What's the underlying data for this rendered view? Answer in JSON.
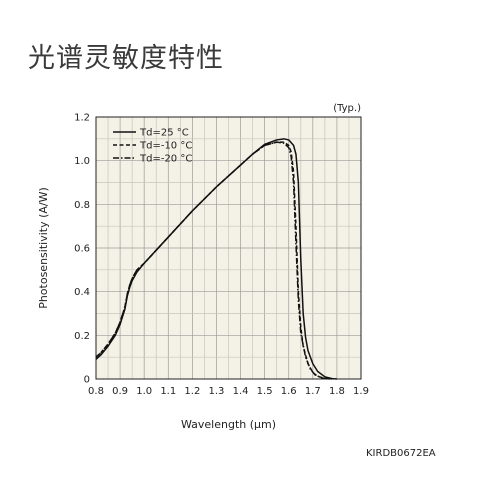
{
  "page": {
    "title": "光谱灵敏度特性",
    "chart_code": "KIRDB0672EA"
  },
  "chart_data": {
    "type": "line",
    "title": "",
    "note": "(Typ.)",
    "xlabel": "Wavelength (μm)",
    "ylabel": "Photosensitivity (A/W)",
    "xlim": [
      0.8,
      1.9
    ],
    "ylim": [
      0,
      1.2
    ],
    "xticks": [
      "0.8",
      "0.9",
      "1.0",
      "1.1",
      "1.2",
      "1.3",
      "1.4",
      "1.5",
      "1.6",
      "1.7",
      "1.8",
      "1.9"
    ],
    "yticks": [
      "0",
      "0.2",
      "0.4",
      "0.6",
      "0.8",
      "1.0",
      "1.2"
    ],
    "grid": true,
    "legend_position": "top-left",
    "series": [
      {
        "name": "Td=25 °C",
        "style": "solid",
        "x": [
          0.8,
          0.82,
          0.85,
          0.88,
          0.9,
          0.92,
          0.93,
          0.94,
          0.95,
          0.97,
          1.0,
          1.05,
          1.1,
          1.2,
          1.3,
          1.4,
          1.45,
          1.5,
          1.55,
          1.58,
          1.6,
          1.62,
          1.63,
          1.64,
          1.65,
          1.66,
          1.67,
          1.68,
          1.7,
          1.72,
          1.75,
          1.78,
          1.8
        ],
        "y": [
          0.09,
          0.11,
          0.15,
          0.2,
          0.25,
          0.32,
          0.38,
          0.42,
          0.45,
          0.49,
          0.53,
          0.59,
          0.65,
          0.77,
          0.88,
          0.98,
          1.03,
          1.075,
          1.095,
          1.1,
          1.095,
          1.07,
          1.03,
          0.9,
          0.55,
          0.3,
          0.19,
          0.13,
          0.07,
          0.035,
          0.01,
          0.002,
          0.0
        ]
      },
      {
        "name": "Td=-10 °C",
        "style": "dashed",
        "x": [
          0.8,
          0.82,
          0.85,
          0.88,
          0.9,
          0.92,
          0.93,
          0.94,
          0.95,
          0.97,
          1.0,
          1.05,
          1.1,
          1.2,
          1.3,
          1.4,
          1.45,
          1.5,
          1.55,
          1.58,
          1.6,
          1.61,
          1.62,
          1.63,
          1.64,
          1.65,
          1.66,
          1.68,
          1.7,
          1.72,
          1.75,
          1.78
        ],
        "y": [
          0.1,
          0.12,
          0.16,
          0.21,
          0.26,
          0.33,
          0.39,
          0.43,
          0.46,
          0.5,
          0.53,
          0.59,
          0.65,
          0.77,
          0.88,
          0.98,
          1.03,
          1.07,
          1.085,
          1.085,
          1.07,
          1.04,
          0.95,
          0.7,
          0.4,
          0.24,
          0.15,
          0.07,
          0.03,
          0.012,
          0.003,
          0.0
        ]
      },
      {
        "name": "Td=-20 °C",
        "style": "dashdot",
        "x": [
          0.8,
          0.82,
          0.85,
          0.88,
          0.9,
          0.92,
          0.93,
          0.94,
          0.95,
          0.97,
          1.0,
          1.05,
          1.1,
          1.2,
          1.3,
          1.4,
          1.45,
          1.5,
          1.55,
          1.58,
          1.6,
          1.61,
          1.62,
          1.63,
          1.64,
          1.65,
          1.67,
          1.69,
          1.71,
          1.74,
          1.77
        ],
        "y": [
          0.1,
          0.12,
          0.16,
          0.21,
          0.26,
          0.33,
          0.39,
          0.43,
          0.46,
          0.5,
          0.53,
          0.59,
          0.65,
          0.77,
          0.88,
          0.98,
          1.03,
          1.07,
          1.085,
          1.08,
          1.06,
          1.02,
          0.9,
          0.62,
          0.36,
          0.21,
          0.1,
          0.045,
          0.018,
          0.004,
          0.0
        ]
      }
    ]
  }
}
